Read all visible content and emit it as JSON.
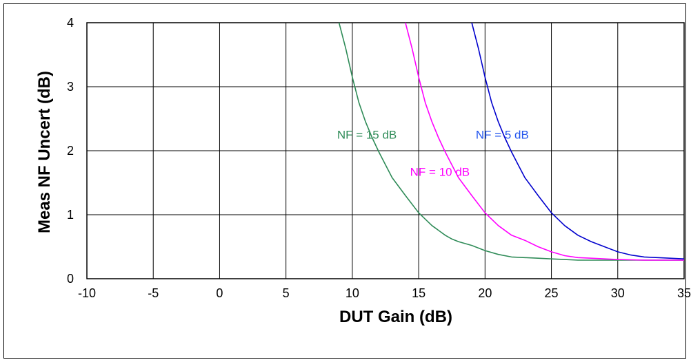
{
  "chart_data": {
    "type": "line",
    "title": "",
    "xlabel": "DUT Gain (dB)",
    "ylabel": "Meas NF Uncert (dB)",
    "xlim": [
      -10,
      35
    ],
    "ylim": [
      0,
      4
    ],
    "xticks": [
      -10,
      -5,
      0,
      5,
      10,
      15,
      20,
      25,
      30,
      35
    ],
    "yticks": [
      0,
      1,
      2,
      3,
      4
    ],
    "grid": true,
    "legend": "none",
    "series": [
      {
        "name": "NF = 15 dB",
        "color": "#2e8b57",
        "x": [
          9.0,
          9.5,
          10.0,
          10.5,
          11.0,
          11.5,
          12.0,
          12.5,
          13.0,
          14.0,
          15.0,
          16.0,
          17.0,
          17.5,
          18.0,
          19.0,
          20.0,
          21.0,
          22.0,
          23.0,
          24.0,
          25.0,
          26.0,
          27.0,
          28.0,
          30.0,
          32.0,
          35.0
        ],
        "y": [
          4.0,
          3.6,
          3.15,
          2.75,
          2.45,
          2.2,
          1.98,
          1.78,
          1.58,
          1.3,
          1.03,
          0.83,
          0.68,
          0.62,
          0.58,
          0.52,
          0.44,
          0.38,
          0.34,
          0.33,
          0.32,
          0.31,
          0.3,
          0.29,
          0.29,
          0.29,
          0.29,
          0.29
        ]
      },
      {
        "name": "NF = 10 dB",
        "color": "#ff00ff",
        "x": [
          14.0,
          14.5,
          15.0,
          15.5,
          16.0,
          16.5,
          17.0,
          17.5,
          18.0,
          19.0,
          20.0,
          21.0,
          22.0,
          23.0,
          24.0,
          25.0,
          26.0,
          27.0,
          28.0,
          30.0,
          32.0,
          35.0
        ],
        "y": [
          4.0,
          3.6,
          3.15,
          2.75,
          2.45,
          2.2,
          1.98,
          1.78,
          1.58,
          1.3,
          1.03,
          0.83,
          0.68,
          0.6,
          0.5,
          0.42,
          0.36,
          0.33,
          0.32,
          0.3,
          0.29,
          0.29
        ]
      },
      {
        "name": "NF = 5 dB",
        "color": "#0000cd",
        "x": [
          19.0,
          19.5,
          20.0,
          20.5,
          21.0,
          21.5,
          22.0,
          22.5,
          23.0,
          24.0,
          25.0,
          26.0,
          27.0,
          28.0,
          29.0,
          30.0,
          31.0,
          32.0,
          33.0,
          35.0
        ],
        "y": [
          4.0,
          3.6,
          3.15,
          2.75,
          2.45,
          2.2,
          1.98,
          1.78,
          1.58,
          1.3,
          1.03,
          0.83,
          0.68,
          0.58,
          0.5,
          0.42,
          0.37,
          0.34,
          0.33,
          0.31
        ]
      }
    ],
    "annotations": [
      {
        "text": "NF = 15 dB",
        "x": 11.1,
        "y": 2.19,
        "color": "#2e8b57"
      },
      {
        "text": "NF = 10 dB",
        "x": 16.6,
        "y": 1.61,
        "color": "#ff00ff"
      },
      {
        "text": "NF = 5 dB",
        "x": 21.3,
        "y": 2.19,
        "color": "#2255ee"
      }
    ]
  }
}
